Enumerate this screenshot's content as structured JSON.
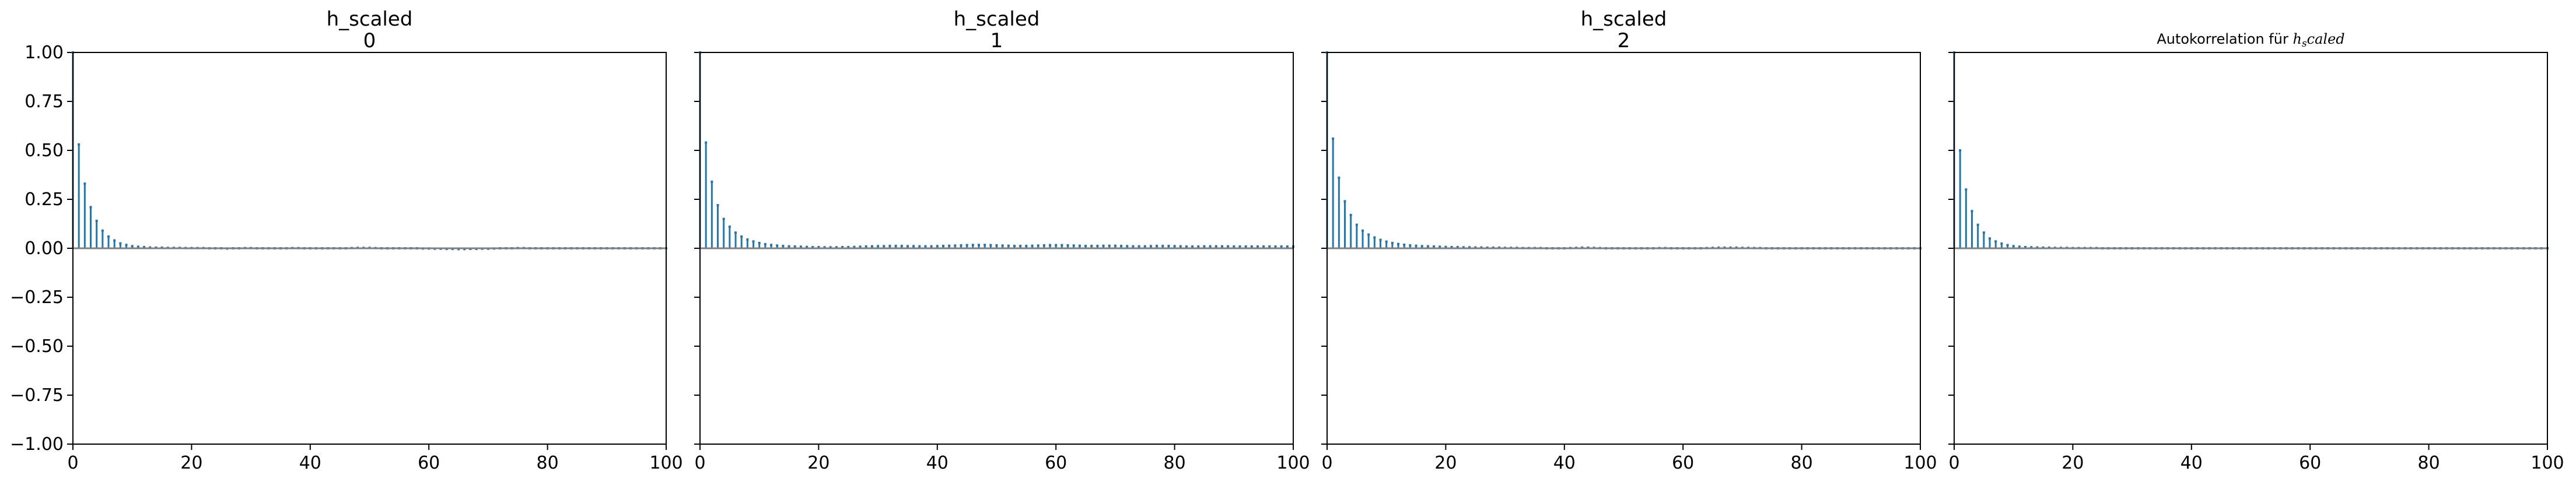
{
  "chart_data": [
    {
      "type": "bar",
      "title_lines": [
        "h_scaled",
        "0"
      ],
      "x": [
        0,
        1,
        2,
        3,
        4,
        5,
        6,
        7,
        8,
        9,
        10,
        11,
        12,
        13,
        14,
        15,
        16,
        17,
        18,
        19,
        20,
        21,
        22,
        23,
        24,
        25,
        26,
        27,
        28,
        29,
        30,
        31,
        32,
        33,
        34,
        35,
        36,
        37,
        38,
        39,
        40,
        41,
        42,
        43,
        44,
        45,
        46,
        47,
        48,
        49,
        50,
        51,
        52,
        53,
        54,
        55,
        56,
        57,
        58,
        59,
        60,
        61,
        62,
        63,
        64,
        65,
        66,
        67,
        68,
        69,
        70,
        71,
        72,
        73,
        74,
        75,
        76,
        77,
        78,
        79,
        80,
        81,
        82,
        83,
        84,
        85,
        86,
        87,
        88,
        89,
        90,
        91,
        92,
        93,
        94,
        95,
        96,
        97,
        98,
        99,
        100
      ],
      "values": [
        1.0,
        0.53,
        0.33,
        0.21,
        0.14,
        0.09,
        0.06,
        0.04,
        0.025,
        0.017,
        0.011,
        0.008,
        0.006,
        0.004,
        0.003,
        0.003,
        0.002,
        0.002,
        0.002,
        0.001,
        0.001,
        0.001,
        0.001,
        0.0,
        0.0,
        0.0,
        -0.001,
        0.0,
        0.0,
        0.001,
        0.001,
        0.0,
        0.0,
        0.0,
        0.0,
        0.0,
        0.0,
        0.001,
        0.001,
        0.0,
        0.0,
        0.0,
        0.0,
        0.0,
        0.0,
        0.0,
        0.0,
        0.001,
        0.002,
        0.002,
        0.002,
        0.001,
        0.0,
        0.0,
        0.0,
        0.0,
        0.0,
        0.0,
        0.0,
        -0.001,
        -0.001,
        -0.002,
        -0.002,
        -0.003,
        -0.003,
        -0.004,
        -0.004,
        -0.003,
        -0.003,
        -0.002,
        -0.002,
        -0.001,
        0.0,
        0.0,
        0.0,
        0.001,
        0.001,
        0.0,
        0.0,
        0.0,
        0.0,
        0.0,
        0.0,
        0.0,
        0.0,
        0.0,
        0.0,
        0.0,
        0.0,
        0.0,
        0.0,
        0.0,
        0.0,
        0.0,
        0.0,
        0.0,
        0.0,
        0.0,
        0.0,
        0.0,
        0.0
      ],
      "xlim": [
        0,
        100
      ],
      "ylim": [
        -1.0,
        1.0
      ],
      "xticks": [
        "0",
        "20",
        "40",
        "60",
        "80",
        "100"
      ],
      "yticks": [
        "1.00",
        "0.75",
        "0.50",
        "0.25",
        "0.00",
        "−0.25",
        "−0.50",
        "−0.75",
        "−1.00"
      ]
    },
    {
      "type": "bar",
      "title_lines": [
        "h_scaled",
        "1"
      ],
      "x": [
        0,
        1,
        2,
        3,
        4,
        5,
        6,
        7,
        8,
        9,
        10,
        11,
        12,
        13,
        14,
        15,
        16,
        17,
        18,
        19,
        20,
        21,
        22,
        23,
        24,
        25,
        26,
        27,
        28,
        29,
        30,
        31,
        32,
        33,
        34,
        35,
        36,
        37,
        38,
        39,
        40,
        41,
        42,
        43,
        44,
        45,
        46,
        47,
        48,
        49,
        50,
        51,
        52,
        53,
        54,
        55,
        56,
        57,
        58,
        59,
        60,
        61,
        62,
        63,
        64,
        65,
        66,
        67,
        68,
        69,
        70,
        71,
        72,
        73,
        74,
        75,
        76,
        77,
        78,
        79,
        80,
        81,
        82,
        83,
        84,
        85,
        86,
        87,
        88,
        89,
        90,
        91,
        92,
        93,
        94,
        95,
        96,
        97,
        98,
        99,
        100
      ],
      "values": [
        1.0,
        0.54,
        0.34,
        0.22,
        0.15,
        0.11,
        0.08,
        0.06,
        0.045,
        0.035,
        0.027,
        0.021,
        0.017,
        0.014,
        0.012,
        0.01,
        0.009,
        0.008,
        0.007,
        0.006,
        0.006,
        0.005,
        0.005,
        0.005,
        0.006,
        0.006,
        0.007,
        0.008,
        0.009,
        0.01,
        0.011,
        0.011,
        0.012,
        0.012,
        0.012,
        0.011,
        0.011,
        0.01,
        0.01,
        0.01,
        0.011,
        0.012,
        0.013,
        0.014,
        0.015,
        0.016,
        0.017,
        0.017,
        0.017,
        0.016,
        0.015,
        0.014,
        0.013,
        0.012,
        0.012,
        0.012,
        0.013,
        0.014,
        0.015,
        0.016,
        0.016,
        0.016,
        0.015,
        0.014,
        0.013,
        0.012,
        0.012,
        0.012,
        0.013,
        0.013,
        0.013,
        0.012,
        0.011,
        0.01,
        0.01,
        0.01,
        0.011,
        0.012,
        0.012,
        0.012,
        0.011,
        0.01,
        0.009,
        0.009,
        0.009,
        0.01,
        0.01,
        0.01,
        0.01,
        0.01,
        0.009,
        0.009,
        0.009,
        0.009,
        0.009,
        0.009,
        0.009,
        0.009,
        0.009,
        0.009,
        0.009
      ],
      "xlim": [
        0,
        100
      ],
      "ylim": [
        -1.0,
        1.0
      ],
      "xticks": [
        "0",
        "20",
        "40",
        "60",
        "80",
        "100"
      ],
      "yticks": []
    },
    {
      "type": "bar",
      "title_lines": [
        "h_scaled",
        "2"
      ],
      "x": [
        0,
        1,
        2,
        3,
        4,
        5,
        6,
        7,
        8,
        9,
        10,
        11,
        12,
        13,
        14,
        15,
        16,
        17,
        18,
        19,
        20,
        21,
        22,
        23,
        24,
        25,
        26,
        27,
        28,
        29,
        30,
        31,
        32,
        33,
        34,
        35,
        36,
        37,
        38,
        39,
        40,
        41,
        42,
        43,
        44,
        45,
        46,
        47,
        48,
        49,
        50,
        51,
        52,
        53,
        54,
        55,
        56,
        57,
        58,
        59,
        60,
        61,
        62,
        63,
        64,
        65,
        66,
        67,
        68,
        69,
        70,
        71,
        72,
        73,
        74,
        75,
        76,
        77,
        78,
        79,
        80,
        81,
        82,
        83,
        84,
        85,
        86,
        87,
        88,
        89,
        90,
        91,
        92,
        93,
        94,
        95,
        96,
        97,
        98,
        99,
        100
      ],
      "values": [
        1.0,
        0.56,
        0.36,
        0.24,
        0.17,
        0.12,
        0.09,
        0.07,
        0.055,
        0.043,
        0.034,
        0.027,
        0.022,
        0.018,
        0.015,
        0.013,
        0.011,
        0.01,
        0.009,
        0.008,
        0.007,
        0.006,
        0.006,
        0.005,
        0.005,
        0.004,
        0.004,
        0.003,
        0.003,
        0.003,
        0.002,
        0.002,
        0.002,
        0.001,
        0.001,
        0.001,
        0.001,
        0.0,
        0.0,
        0.0,
        0.0,
        0.001,
        0.002,
        0.003,
        0.003,
        0.002,
        0.001,
        0.0,
        0.0,
        0.0,
        0.0,
        0.0,
        0.0,
        0.0,
        0.0,
        0.0,
        0.001,
        0.001,
        0.0,
        0.0,
        0.0,
        0.0,
        0.0,
        0.0,
        0.001,
        0.002,
        0.003,
        0.003,
        0.003,
        0.003,
        0.002,
        0.002,
        0.001,
        0.001,
        0.0,
        0.0,
        0.0,
        0.0,
        0.0,
        0.0,
        0.0,
        0.0,
        0.0,
        0.0,
        0.0,
        0.0,
        0.0,
        0.0,
        0.0,
        0.0,
        0.0,
        0.0,
        0.0,
        0.0,
        0.0,
        0.0,
        0.0,
        0.0,
        0.0,
        0.0,
        0.0
      ],
      "xlim": [
        0,
        100
      ],
      "ylim": [
        -1.0,
        1.0
      ],
      "xticks": [
        "0",
        "20",
        "40",
        "60",
        "80",
        "100"
      ],
      "yticks": []
    },
    {
      "type": "bar",
      "title_prefix": "Autokorrelation für ",
      "title_math_base": "h",
      "title_math_sub": "s",
      "title_math_rest": "caled",
      "x": [
        0,
        1,
        2,
        3,
        4,
        5,
        6,
        7,
        8,
        9,
        10,
        11,
        12,
        13,
        14,
        15,
        16,
        17,
        18,
        19,
        20,
        21,
        22,
        23,
        24,
        25,
        26,
        27,
        28,
        29,
        30,
        31,
        32,
        33,
        34,
        35,
        36,
        37,
        38,
        39,
        40,
        41,
        42,
        43,
        44,
        45,
        46,
        47,
        48,
        49,
        50,
        51,
        52,
        53,
        54,
        55,
        56,
        57,
        58,
        59,
        60,
        61,
        62,
        63,
        64,
        65,
        66,
        67,
        68,
        69,
        70,
        71,
        72,
        73,
        74,
        75,
        76,
        77,
        78,
        79,
        80,
        81,
        82,
        83,
        84,
        85,
        86,
        87,
        88,
        89,
        90,
        91,
        92,
        93,
        94,
        95,
        96,
        97,
        98,
        99,
        100
      ],
      "values": [
        1.0,
        0.5,
        0.3,
        0.19,
        0.12,
        0.08,
        0.05,
        0.035,
        0.024,
        0.016,
        0.011,
        0.008,
        0.006,
        0.005,
        0.004,
        0.003,
        0.003,
        0.002,
        0.002,
        0.002,
        0.001,
        0.001,
        0.001,
        0.001,
        0.001,
        0.0,
        0.0,
        0.0,
        0.0,
        0.0,
        0.0,
        0.0,
        0.0,
        0.0,
        0.0,
        0.0,
        0.0,
        0.0,
        0.0,
        0.0,
        0.0,
        0.0,
        0.0,
        0.0,
        0.0,
        0.0,
        0.0,
        0.0,
        0.0,
        0.0,
        0.0,
        0.0,
        0.0,
        0.0,
        0.0,
        0.0,
        0.0,
        0.0,
        0.0,
        0.0,
        0.0,
        0.0,
        0.0,
        0.0,
        0.0,
        0.0,
        0.0,
        0.0,
        0.0,
        0.0,
        0.0,
        0.0,
        0.0,
        0.0,
        0.0,
        0.0,
        0.0,
        0.0,
        0.0,
        0.0,
        0.0,
        0.0,
        0.0,
        0.0,
        0.0,
        0.0,
        0.0,
        0.0,
        0.0,
        0.0,
        0.0,
        0.0,
        0.0,
        0.0,
        0.0,
        0.0,
        0.0,
        0.0,
        0.0,
        0.0,
        0.0
      ],
      "xlim": [
        0,
        100
      ],
      "ylim": [
        -1.0,
        1.0
      ],
      "xticks": [
        "0",
        "20",
        "40",
        "60",
        "80",
        "100"
      ],
      "yticks": []
    }
  ],
  "colors": {
    "bar": "#1f77b4",
    "zero_line": "#808080",
    "axes": "#000000"
  }
}
